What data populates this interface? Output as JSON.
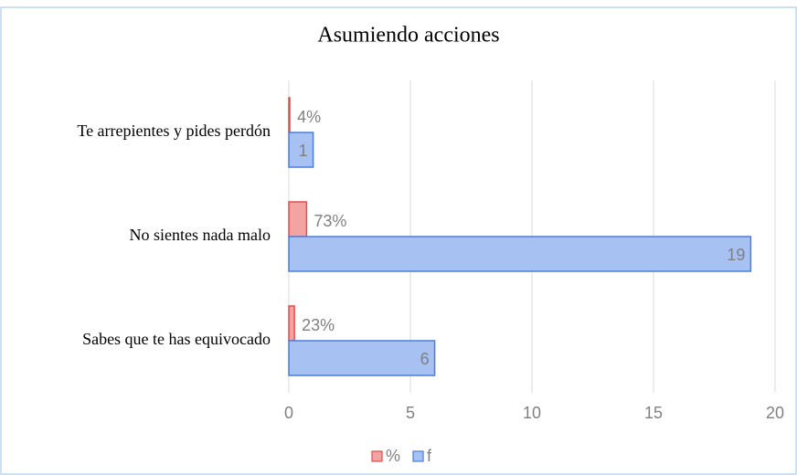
{
  "chart_data": {
    "type": "hbar",
    "title": "Asumiendo acciones",
    "categories": [
      "Te arrepientes y pides perdón",
      "No sientes nada malo",
      "Sabes que te has equivocado"
    ],
    "series": [
      {
        "name": "%",
        "color": "#f4a3a3",
        "stroke": "#e0504a",
        "values": [
          0.04,
          0.73,
          0.23
        ],
        "value_labels": [
          "4%",
          "73%",
          "23%"
        ]
      },
      {
        "name": "f",
        "color": "#a7c1f2",
        "stroke": "#4a7fdb",
        "values": [
          1,
          19,
          6
        ]
      }
    ],
    "xlim": [
      0,
      20
    ],
    "xticks": [
      0,
      5,
      10,
      15,
      20
    ],
    "grid": true,
    "legend": "bottom"
  }
}
